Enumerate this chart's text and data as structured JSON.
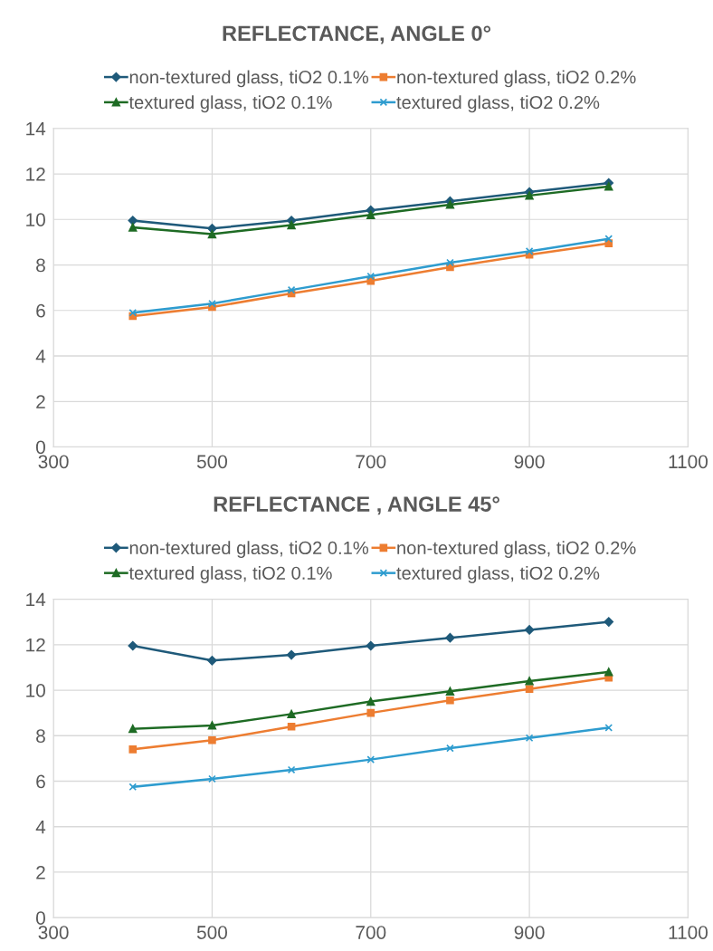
{
  "chart_data": [
    {
      "type": "line",
      "title": "REFLECTANCE, ANGLE 0°",
      "x": [
        400,
        500,
        600,
        700,
        800,
        900,
        1000
      ],
      "xlim": [
        300,
        1100
      ],
      "xticks": [
        300,
        500,
        700,
        900,
        1100
      ],
      "ylim": [
        0,
        14
      ],
      "yticks": [
        0,
        2,
        4,
        6,
        8,
        10,
        12,
        14
      ],
      "grid": true,
      "legend": "top",
      "series": [
        {
          "name": "non-textured glass, tiO2 0.1%",
          "color": "#1f5a7a",
          "marker": "diamond",
          "values": [
            9.95,
            9.6,
            9.95,
            10.4,
            10.8,
            11.2,
            11.6
          ]
        },
        {
          "name": "non-textured glass, tiO2 0.2%",
          "color": "#ed7d31",
          "marker": "square",
          "values": [
            5.75,
            6.15,
            6.75,
            7.3,
            7.9,
            8.45,
            8.95
          ]
        },
        {
          "name": "textured glass, tiO2 0.1%",
          "color": "#1e6b24",
          "marker": "triangle",
          "values": [
            9.65,
            9.35,
            9.75,
            10.2,
            10.65,
            11.05,
            11.45
          ]
        },
        {
          "name": "textured glass, tiO2 0.2%",
          "color": "#2e9ccf",
          "marker": "cross",
          "values": [
            5.9,
            6.3,
            6.9,
            7.5,
            8.1,
            8.6,
            9.15
          ]
        }
      ]
    },
    {
      "type": "line",
      "title": "REFLECTANCE , ANGLE 45°",
      "x": [
        400,
        500,
        600,
        700,
        800,
        900,
        1000
      ],
      "xlim": [
        300,
        1100
      ],
      "xticks": [
        300,
        500,
        700,
        900,
        1100
      ],
      "ylim": [
        0,
        14
      ],
      "yticks": [
        0,
        2,
        4,
        6,
        8,
        10,
        12,
        14
      ],
      "grid": true,
      "legend": "top",
      "series": [
        {
          "name": "non-textured glass, tiO2 0.1%",
          "color": "#1f5a7a",
          "marker": "diamond",
          "values": [
            11.95,
            11.3,
            11.55,
            11.95,
            12.3,
            12.65,
            13.0
          ]
        },
        {
          "name": "non-textured glass, tiO2 0.2%",
          "color": "#ed7d31",
          "marker": "square",
          "values": [
            7.4,
            7.8,
            8.4,
            9.0,
            9.55,
            10.05,
            10.55
          ]
        },
        {
          "name": "textured glass, tiO2 0.1%",
          "color": "#1e6b24",
          "marker": "triangle",
          "values": [
            8.3,
            8.45,
            8.95,
            9.5,
            9.95,
            10.4,
            10.8
          ]
        },
        {
          "name": "textured glass, tiO2 0.2%",
          "color": "#2e9ccf",
          "marker": "cross",
          "values": [
            5.75,
            6.1,
            6.5,
            6.95,
            7.45,
            7.9,
            8.35
          ]
        }
      ]
    }
  ]
}
